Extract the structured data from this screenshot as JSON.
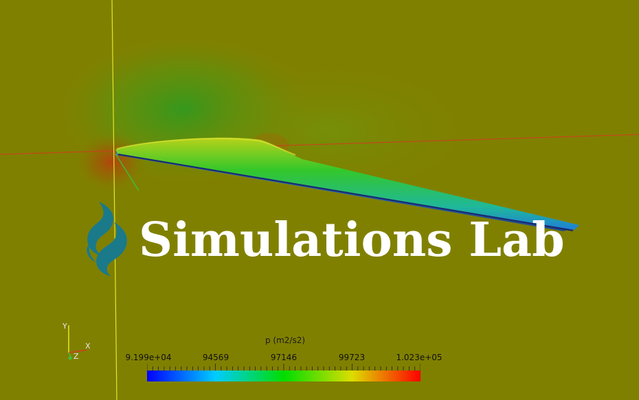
{
  "watermark": {
    "text": "Simulations Lab"
  },
  "colorbar": {
    "title": "p (m2/s2)",
    "labels": [
      "9.199e+04",
      "94569",
      "97146",
      "99723",
      "1.023e+05"
    ],
    "colors": [
      "#0000ff",
      "#00ccff",
      "#00dd00",
      "#dddd00",
      "#ff0000"
    ]
  },
  "orientation_axes": {
    "x_label": "X",
    "y_label": "Y",
    "z_label": "Z"
  },
  "colors": {
    "background": "#808000",
    "axis_x_line": "#d23c1e",
    "axis_y_line": "#e6e628",
    "logo": "#1a7a8a"
  }
}
